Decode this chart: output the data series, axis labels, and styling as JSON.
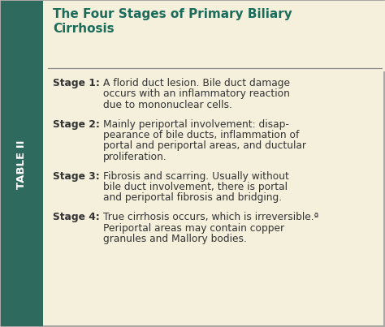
{
  "title_line1": "The Four Stages of Primary Biliary",
  "title_line2": "Cirrhosis",
  "title_color": "#1a6b5a",
  "sidebar_color": "#2e6b5e",
  "sidebar_text": "TABLE II",
  "sidebar_text_color": "#ffffff",
  "background_color": "#f5f0dc",
  "border_color": "#999999",
  "text_color": "#333333",
  "stages": [
    {
      "label": "Stage 1:",
      "lines": [
        "A florid duct lesion. Bile duct damage",
        "occurs with an inflammatory reaction",
        "due to mononuclear cells."
      ]
    },
    {
      "label": "Stage 2:",
      "lines": [
        "Mainly periportal involvement: disap-",
        "pearance of bile ducts, inflammation of",
        "portal and periportal areas, and ductular",
        "proliferation."
      ]
    },
    {
      "label": "Stage 3:",
      "lines": [
        "Fibrosis and scarring. Usually without",
        "bile duct involvement, there is portal",
        "and periportal fibrosis and bridging."
      ]
    },
    {
      "label": "Stage 4:",
      "lines": [
        "True cirrhosis occurs, which is irreversible.ª",
        "Periportal areas may contain copper",
        "granules and Mallory bodies."
      ]
    }
  ],
  "figsize": [
    4.74,
    4.03
  ],
  "dpi": 100
}
